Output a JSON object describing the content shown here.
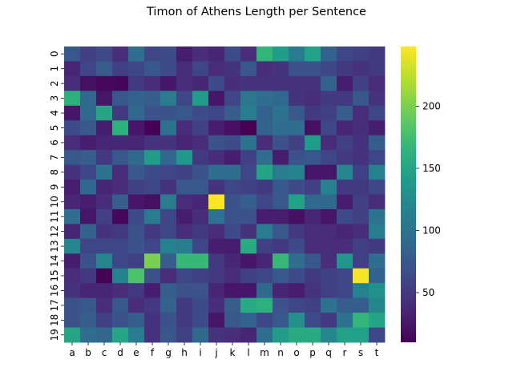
{
  "chart_data": {
    "type": "heatmap",
    "title": "Timon of Athens Length per Sentence",
    "xlabel": "",
    "ylabel": "",
    "x_categories": [
      "a",
      "b",
      "c",
      "d",
      "e",
      "f",
      "g",
      "h",
      "i",
      "j",
      "k",
      "l",
      "m",
      "n",
      "o",
      "p",
      "q",
      "r",
      "s",
      "t"
    ],
    "y_categories": [
      "0",
      "1",
      "2",
      "3",
      "4",
      "5",
      "6",
      "7",
      "8",
      "9",
      "10",
      "11",
      "12",
      "13",
      "14",
      "15",
      "16",
      "17",
      "18",
      "19"
    ],
    "colormap": "viridis",
    "vmin": 10,
    "vmax": 248,
    "colorbar_ticks": [
      50,
      100,
      150,
      200
    ],
    "values": [
      [
        75,
        55,
        62,
        40,
        95,
        60,
        65,
        30,
        40,
        35,
        65,
        40,
        165,
        140,
        110,
        145,
        85,
        60,
        55,
        50
      ],
      [
        35,
        60,
        80,
        55,
        60,
        75,
        65,
        40,
        60,
        40,
        45,
        75,
        40,
        45,
        70,
        70,
        60,
        50,
        45,
        50
      ],
      [
        40,
        20,
        15,
        14,
        50,
        40,
        25,
        40,
        35,
        65,
        40,
        45,
        45,
        45,
        45,
        45,
        85,
        30,
        55,
        40
      ],
      [
        160,
        90,
        25,
        75,
        85,
        80,
        110,
        60,
        140,
        25,
        60,
        105,
        95,
        90,
        45,
        40,
        50,
        50,
        75,
        45
      ],
      [
        25,
        90,
        150,
        50,
        90,
        70,
        70,
        75,
        65,
        60,
        80,
        110,
        85,
        100,
        75,
        50,
        55,
        80,
        40,
        60
      ],
      [
        65,
        75,
        30,
        160,
        25,
        12,
        100,
        40,
        55,
        30,
        20,
        10,
        85,
        95,
        95,
        20,
        60,
        35,
        40,
        30
      ],
      [
        40,
        30,
        35,
        35,
        35,
        45,
        45,
        35,
        40,
        70,
        65,
        100,
        40,
        70,
        55,
        140,
        40,
        55,
        45,
        80
      ],
      [
        75,
        80,
        50,
        75,
        90,
        140,
        90,
        135,
        50,
        40,
        30,
        55,
        95,
        30,
        70,
        75,
        60,
        50,
        45,
        60
      ],
      [
        45,
        60,
        100,
        40,
        75,
        65,
        60,
        55,
        70,
        95,
        95,
        60,
        150,
        110,
        115,
        25,
        25,
        120,
        55,
        115
      ],
      [
        30,
        90,
        35,
        40,
        55,
        60,
        45,
        75,
        75,
        45,
        60,
        55,
        50,
        75,
        65,
        55,
        115,
        50,
        50,
        60
      ],
      [
        35,
        30,
        40,
        80,
        25,
        20,
        110,
        40,
        35,
        248,
        70,
        80,
        60,
        75,
        145,
        90,
        90,
        30,
        55,
        40
      ],
      [
        95,
        25,
        55,
        15,
        65,
        110,
        60,
        30,
        40,
        100,
        70,
        70,
        30,
        30,
        20,
        35,
        25,
        65,
        55,
        100
      ],
      [
        35,
        85,
        45,
        50,
        70,
        50,
        60,
        40,
        50,
        40,
        65,
        45,
        110,
        75,
        50,
        40,
        40,
        35,
        40,
        110
      ],
      [
        120,
        60,
        60,
        60,
        70,
        60,
        115,
        110,
        60,
        30,
        30,
        155,
        55,
        50,
        65,
        40,
        40,
        40,
        55,
        50
      ],
      [
        30,
        70,
        120,
        60,
        55,
        200,
        80,
        170,
        170,
        50,
        35,
        25,
        35,
        170,
        95,
        75,
        40,
        135,
        55,
        95
      ],
      [
        40,
        50,
        12,
        115,
        180,
        70,
        40,
        60,
        55,
        50,
        40,
        55,
        60,
        75,
        65,
        50,
        55,
        60,
        245,
        85
      ],
      [
        45,
        35,
        35,
        40,
        50,
        30,
        80,
        70,
        70,
        35,
        25,
        25,
        90,
        35,
        30,
        45,
        55,
        60,
        115,
        130
      ],
      [
        70,
        75,
        40,
        75,
        40,
        50,
        85,
        50,
        65,
        40,
        80,
        155,
        160,
        70,
        60,
        55,
        100,
        80,
        80,
        120
      ],
      [
        70,
        80,
        55,
        70,
        80,
        45,
        70,
        50,
        65,
        25,
        75,
        85,
        60,
        75,
        130,
        65,
        50,
        100,
        165,
        150
      ],
      [
        150,
        95,
        90,
        150,
        110,
        45,
        75,
        55,
        90,
        45,
        40,
        35,
        95,
        140,
        155,
        155,
        120,
        145,
        145,
        60
      ]
    ]
  }
}
